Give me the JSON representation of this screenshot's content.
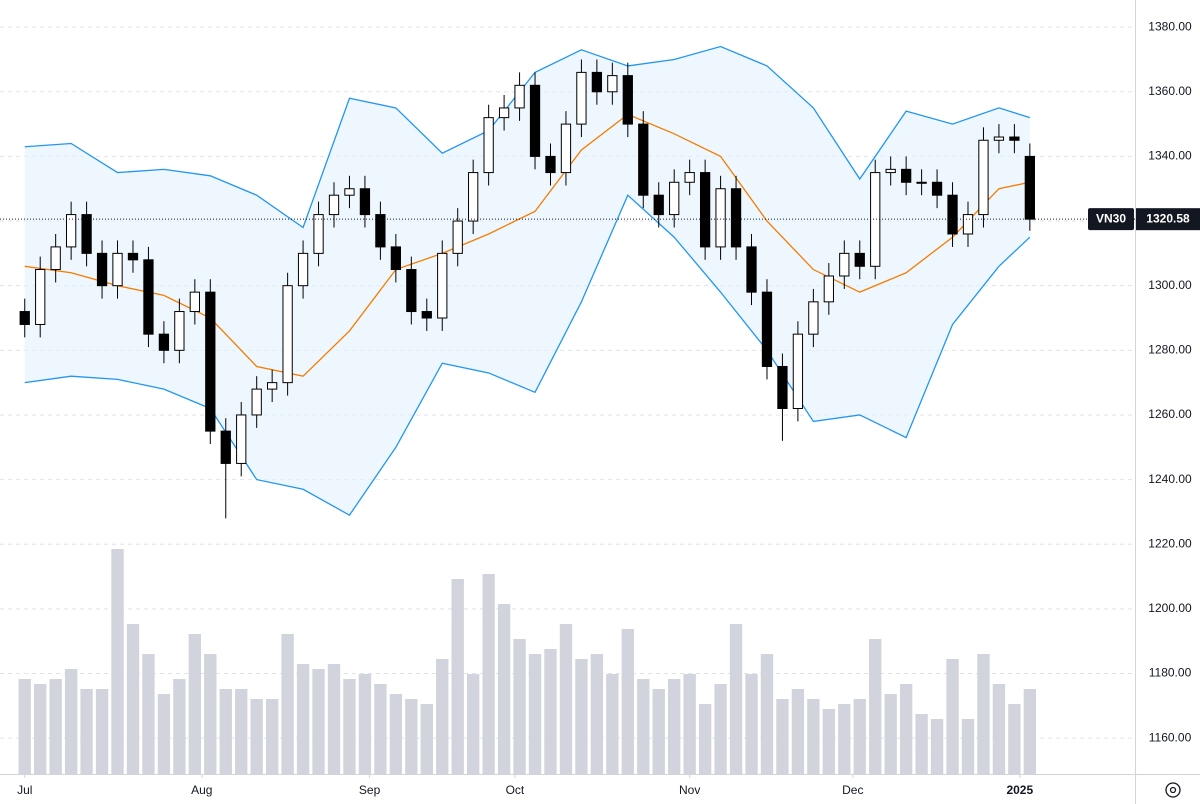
{
  "chart_data": {
    "type": "candlestick",
    "symbol": "VN30",
    "x": [
      0,
      2,
      4,
      6,
      8,
      10,
      12,
      14,
      16,
      18,
      20,
      22,
      24,
      26,
      28,
      30,
      32,
      34,
      36,
      38,
      40,
      42,
      44,
      46,
      48,
      50,
      52,
      54,
      56,
      58,
      60,
      62,
      64,
      66,
      68,
      70,
      72,
      74,
      76,
      78,
      80,
      82,
      84,
      86,
      88,
      90,
      92,
      94,
      96,
      98,
      100,
      102,
      104,
      106,
      108,
      110,
      112,
      114,
      116,
      118,
      120,
      122,
      124,
      126,
      128,
      130
    ],
    "open": [
      1292,
      1288,
      1305,
      1312,
      1322,
      1310,
      1300,
      1310,
      1308,
      1285,
      1280,
      1292,
      1298,
      1255,
      1245,
      1260,
      1268,
      1270,
      1300,
      1310,
      1322,
      1328,
      1330,
      1322,
      1312,
      1305,
      1292,
      1290,
      1310,
      1320,
      1335,
      1352,
      1355,
      1362,
      1340,
      1335,
      1350,
      1366,
      1360,
      1365,
      1350,
      1328,
      1322,
      1332,
      1335,
      1312,
      1330,
      1312,
      1298,
      1275,
      1262,
      1285,
      1295,
      1303,
      1310,
      1306,
      1335,
      1336,
      1332,
      1332,
      1328,
      1316,
      1322,
      1345,
      1346,
      1340
    ],
    "high": [
      1296,
      1309,
      1316,
      1326,
      1326,
      1314,
      1314,
      1314,
      1312,
      1289,
      1296,
      1302,
      1302,
      1259,
      1264,
      1272,
      1274,
      1304,
      1314,
      1326,
      1332,
      1334,
      1334,
      1326,
      1316,
      1309,
      1296,
      1314,
      1324,
      1339,
      1356,
      1359,
      1366,
      1366,
      1344,
      1354,
      1370,
      1370,
      1369,
      1369,
      1354,
      1332,
      1336,
      1339,
      1339,
      1334,
      1334,
      1316,
      1302,
      1279,
      1289,
      1299,
      1307,
      1314,
      1314,
      1339,
      1340,
      1340,
      1336,
      1336,
      1332,
      1326,
      1349,
      1350,
      1350,
      1344
    ],
    "low": [
      1284,
      1284,
      1301,
      1308,
      1306,
      1296,
      1296,
      1304,
      1281,
      1276,
      1276,
      1288,
      1251,
      1228,
      1241,
      1256,
      1264,
      1266,
      1296,
      1306,
      1318,
      1324,
      1318,
      1308,
      1301,
      1288,
      1286,
      1286,
      1306,
      1316,
      1331,
      1348,
      1351,
      1336,
      1331,
      1331,
      1346,
      1356,
      1356,
      1346,
      1324,
      1318,
      1318,
      1328,
      1308,
      1308,
      1308,
      1294,
      1271,
      1252,
      1258,
      1281,
      1291,
      1299,
      1302,
      1302,
      1331,
      1328,
      1328,
      1324,
      1312,
      1312,
      1318,
      1341,
      1341,
      1317
    ],
    "close": [
      1288,
      1305,
      1312,
      1322,
      1310,
      1300,
      1310,
      1308,
      1285,
      1280,
      1292,
      1298,
      1255,
      1245,
      1260,
      1268,
      1270,
      1300,
      1310,
      1322,
      1328,
      1330,
      1322,
      1312,
      1305,
      1292,
      1290,
      1310,
      1320,
      1335,
      1352,
      1355,
      1362,
      1340,
      1335,
      1350,
      1366,
      1360,
      1365,
      1350,
      1328,
      1322,
      1332,
      1335,
      1312,
      1330,
      1312,
      1298,
      1275,
      1262,
      1285,
      1295,
      1303,
      1310,
      1306,
      1335,
      1336,
      1332,
      1332,
      1328,
      1316,
      1322,
      1345,
      1346,
      1345,
      1320.58
    ],
    "volume": [
      95,
      90,
      95,
      105,
      85,
      85,
      225,
      150,
      120,
      80,
      95,
      140,
      120,
      85,
      85,
      75,
      75,
      140,
      110,
      105,
      110,
      95,
      100,
      90,
      80,
      75,
      70,
      115,
      195,
      100,
      200,
      170,
      135,
      120,
      125,
      150,
      115,
      120,
      100,
      145,
      95,
      85,
      95,
      100,
      70,
      90,
      150,
      100,
      120,
      75,
      85,
      75,
      65,
      70,
      75,
      135,
      80,
      90,
      60,
      55,
      115,
      55,
      120,
      90,
      70,
      85
    ],
    "up_color": "#ffffff",
    "down_color": "#000000",
    "volume_color": "#d1d4dc",
    "volume_lim": [
      0,
      774
    ],
    "band_fill": "#e3f2fd",
    "series": [
      {
        "color": "#f57c00",
        "x": [
          0,
          6,
          12,
          18,
          24,
          30,
          36,
          42,
          48,
          54,
          60,
          66,
          72,
          78,
          84,
          90,
          96,
          102,
          108,
          114,
          120,
          126,
          130
        ],
        "values": [
          1306,
          1304,
          1300,
          1297,
          1290,
          1275,
          1272,
          1286,
          1305,
          1310,
          1316,
          1323,
          1342,
          1353,
          1347,
          1340,
          1320,
          1305,
          1298,
          1304,
          1315,
          1330,
          1332
        ]
      },
      {
        "color": "#2196f3",
        "x": [
          0,
          6,
          12,
          18,
          24,
          30,
          36,
          42,
          48,
          54,
          60,
          66,
          72,
          78,
          84,
          90,
          96,
          102,
          108,
          114,
          120,
          126,
          130
        ],
        "values": [
          1343,
          1344,
          1335,
          1336,
          1334,
          1328,
          1318,
          1358,
          1355,
          1341,
          1348,
          1366,
          1373,
          1368,
          1370,
          1374,
          1368,
          1355,
          1333,
          1354,
          1350,
          1355,
          1352
        ]
      },
      {
        "color": "#2196f3",
        "x": [
          0,
          6,
          12,
          18,
          24,
          30,
          36,
          42,
          48,
          54,
          60,
          66,
          72,
          78,
          84,
          90,
          96,
          102,
          108,
          114,
          120,
          126,
          130
        ],
        "values": [
          1270,
          1272,
          1271,
          1268,
          1262,
          1240,
          1237,
          1229,
          1250,
          1276,
          1273,
          1267,
          1295,
          1328,
          1315,
          1298,
          1280,
          1258,
          1260,
          1253,
          1288,
          1306,
          1315
        ]
      }
    ],
    "xlim": [
      -3.2,
      143.6
    ],
    "ylim": [
      1148.9,
      1388.4
    ],
    "xticks": [
      {
        "value": 0,
        "label": "Jul"
      },
      {
        "value": 22.9,
        "label": "Aug"
      },
      {
        "value": 44.6,
        "label": "Sep"
      },
      {
        "value": 63.4,
        "label": "Oct"
      },
      {
        "value": 86,
        "label": "Nov"
      },
      {
        "value": 107.1,
        "label": "Dec"
      },
      {
        "value": 128.7,
        "label": "2025"
      }
    ],
    "yticks": [
      {
        "value": 1160,
        "label": "1160.00"
      },
      {
        "value": 1180,
        "label": "1180.00"
      },
      {
        "value": 1200,
        "label": "1200.00"
      },
      {
        "value": 1220,
        "label": "1220.00"
      },
      {
        "value": 1240,
        "label": "1240.00"
      },
      {
        "value": 1260,
        "label": "1260.00"
      },
      {
        "value": 1280,
        "label": "1280.00"
      },
      {
        "value": 1300,
        "label": "1300.00"
      },
      {
        "value": 1320,
        "label": "1320.00"
      },
      {
        "value": 1340,
        "label": "1340.00"
      },
      {
        "value": 1360,
        "label": "1360.00"
      },
      {
        "value": 1380,
        "label": "1380.00"
      }
    ],
    "grid": true
  }
}
